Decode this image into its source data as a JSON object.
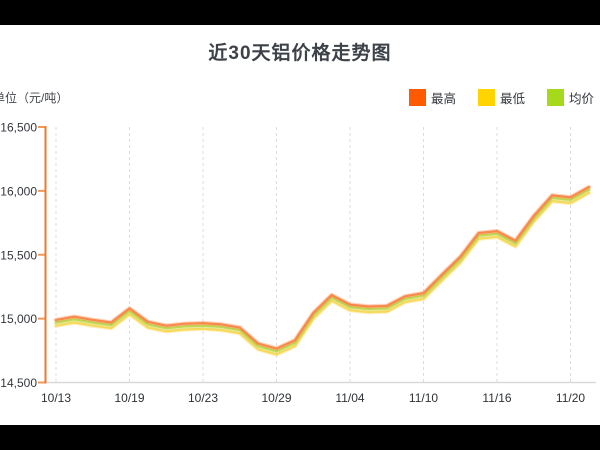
{
  "page": {
    "background": "#000000",
    "panel_background": "#ffffff"
  },
  "header": {
    "title": "近30天铝价格走势图"
  },
  "unit_label": "单位（元/吨）",
  "legend": [
    {
      "key": "high",
      "label": "最高",
      "color": "#ff5a00"
    },
    {
      "key": "low",
      "label": "最低",
      "color": "#ffd400"
    },
    {
      "key": "avg",
      "label": "均价",
      "color": "#a6d81c"
    }
  ],
  "chart_data": {
    "type": "line",
    "title": "近30天铝价格走势图",
    "ylabel": "单位（元/吨）",
    "xlabel": "",
    "grid": "vertical-dashed",
    "legend_position": "top-right",
    "ylim": [
      14500,
      16500
    ],
    "y_ticks": [
      16500,
      16000,
      15500,
      15000,
      14500
    ],
    "y_tick_labels": [
      "16,500",
      "16,000",
      "15,500",
      "15,000",
      "14,500"
    ],
    "n_points": 30,
    "x_tick_indices": [
      0,
      4,
      8,
      12,
      16,
      20,
      24,
      28
    ],
    "x_tick_labels": [
      "10/13",
      "10/19",
      "10/23",
      "10/29",
      "11/04",
      "11/10",
      "11/16",
      "11/20"
    ],
    "axis_colors": {
      "y_axis": "#ee7a2f",
      "y_tick": "#f19a5b",
      "x_axis": "#d9d9d9",
      "gridline": "#dddddd"
    },
    "series": [
      {
        "key": "high",
        "name": "最高",
        "color": "#f9884a",
        "values": [
          14990,
          15015,
          14990,
          14970,
          15080,
          14975,
          14945,
          14960,
          14965,
          14955,
          14930,
          14805,
          14765,
          14830,
          15045,
          15185,
          15110,
          15095,
          15100,
          15175,
          15200,
          15345,
          15485,
          15670,
          15685,
          15610,
          15805,
          15965,
          15950,
          16030
        ]
      },
      {
        "key": "low",
        "name": "最低",
        "color": "#f8d95c",
        "values": [
          14945,
          14970,
          14945,
          14925,
          15035,
          14930,
          14900,
          14915,
          14920,
          14910,
          14885,
          14760,
          14720,
          14785,
          15000,
          15140,
          15065,
          15050,
          15055,
          15130,
          15155,
          15300,
          15440,
          15625,
          15640,
          15565,
          15760,
          15920,
          15905,
          15985
        ]
      },
      {
        "key": "avg",
        "name": "均价",
        "color": "#bdda52",
        "values": [
          14970,
          14995,
          14970,
          14950,
          15060,
          14955,
          14925,
          14940,
          14945,
          14935,
          14910,
          14785,
          14745,
          14810,
          15025,
          15165,
          15090,
          15075,
          15080,
          15155,
          15180,
          15325,
          15465,
          15650,
          15665,
          15590,
          15785,
          15945,
          15930,
          16010
        ]
      }
    ]
  }
}
